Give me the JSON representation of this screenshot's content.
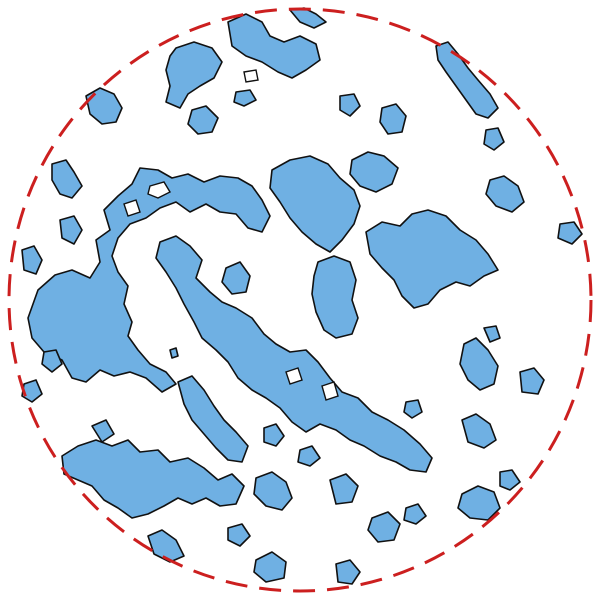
{
  "figure": {
    "description_type": "percolation-style cluster map inside dashed circular boundary",
    "cluster_fill": "#6fb0e3",
    "cluster_stroke": "#111111",
    "boundary_color": "#cc1f1f",
    "background": "#ffffff",
    "boundary_style": "dashed",
    "cluster_count": 42
  }
}
